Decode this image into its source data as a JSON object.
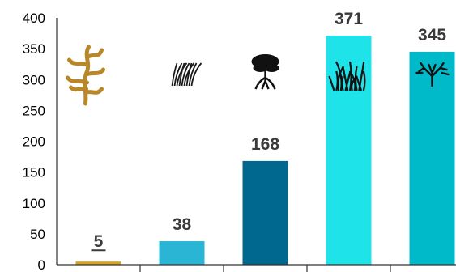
{
  "chart_data": {
    "type": "bar",
    "title": "",
    "xlabel": "",
    "ylabel": "",
    "ylim": [
      0,
      400
    ],
    "yticks": [
      0,
      50,
      100,
      150,
      200,
      250,
      300,
      350,
      400
    ],
    "grid": false,
    "categories": [
      "",
      "",
      "",
      "",
      ""
    ],
    "values": [
      5,
      38,
      168,
      371,
      345
    ],
    "data_labels": [
      "5",
      "38",
      "168",
      "371",
      "345"
    ],
    "first_label_underlined": true,
    "colors": [
      "#d9a21b",
      "#29b5d3",
      "#00678f",
      "#1ee3e8",
      "#00bac9"
    ],
    "icons": [
      "kelp-icon",
      "seagrass-icon",
      "mangrove-icon",
      "marsh-grass-icon",
      "shrub-icon"
    ],
    "icon_colors": [
      "#b8872a",
      "#1a1a1a",
      "#111111",
      "#111111",
      "#111111"
    ]
  }
}
